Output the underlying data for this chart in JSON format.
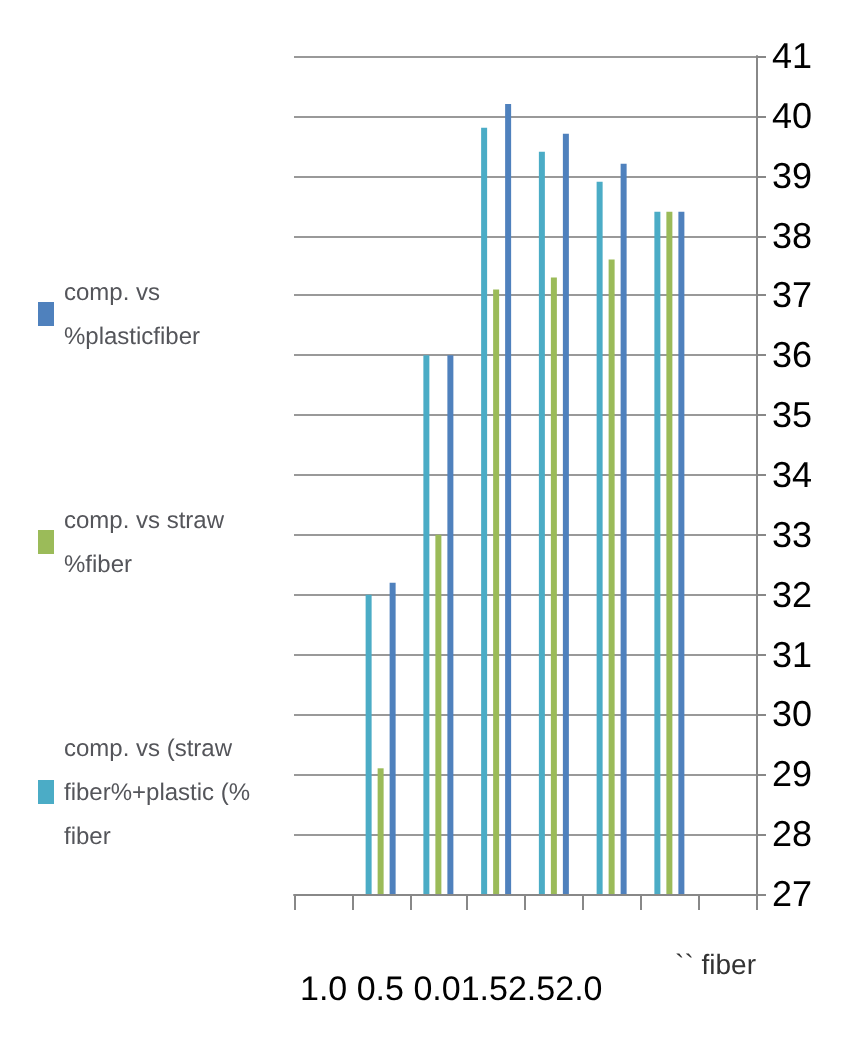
{
  "chart_data": {
    "type": "bar",
    "categories": [
      null,
      null,
      null,
      null,
      null,
      null,
      null,
      null
    ],
    "series": [
      {
        "name": "comp. vs (straw fiber%+plastic (% fiber",
        "color": "#4bacc6",
        "values": [
          null,
          32,
          36,
          39.8,
          39.4,
          38.9,
          38.4,
          null
        ]
      },
      {
        "name": "comp. vs straw %fiber",
        "color": "#9bbb59",
        "values": [
          null,
          29.1,
          33,
          37.1,
          37.3,
          37.6,
          38.4,
          null
        ]
      },
      {
        "name": "comp. vs %plasticfiber",
        "color": "#4f81bd",
        "values": [
          null,
          32.2,
          36,
          40.2,
          39.7,
          39.2,
          38.4,
          null
        ]
      }
    ],
    "xlabel": "`` fiber",
    "annotations": [
      "1.0 0.5 0.01.52.52.0"
    ],
    "ylim": [
      27,
      41
    ],
    "yticks": [
      27,
      28,
      29,
      30,
      31,
      32,
      33,
      34,
      35,
      36,
      37,
      38,
      39,
      40,
      41
    ],
    "grid": "y",
    "legend": "left"
  }
}
